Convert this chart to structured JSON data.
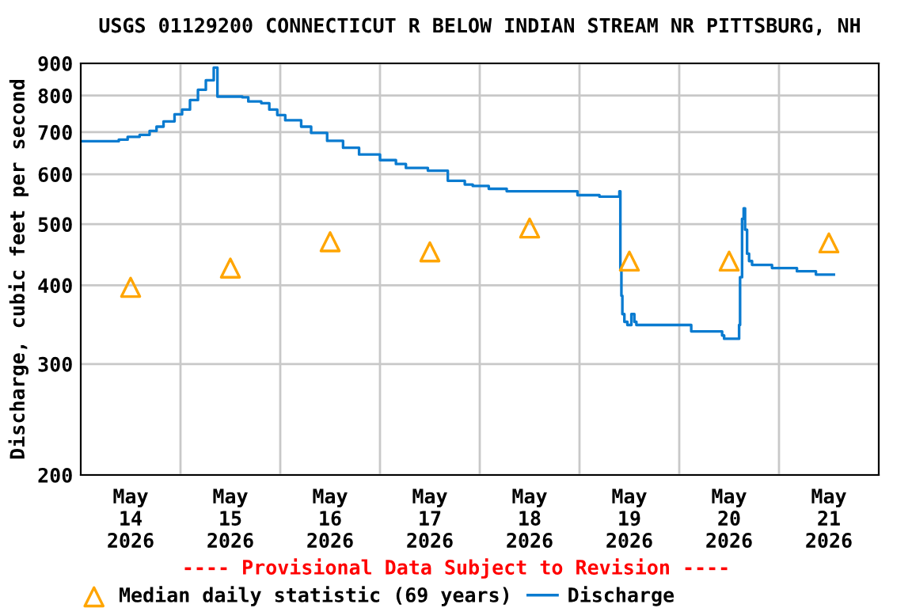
{
  "chart_data": {
    "type": "step",
    "title": "USGS 01129200 CONNECTICUT R BELOW INDIAN STREAM NR PITTSBURG, NH",
    "ylabel": "Discharge, cubic feet per second",
    "log": "y",
    "ylim": [
      200,
      900
    ],
    "yticks": [
      200,
      300,
      400,
      500,
      600,
      700,
      800,
      900
    ],
    "xlim": [
      "2026-05-14T00:00",
      "2026-05-22T00:00"
    ],
    "xticks": [
      {
        "value": "2026-05-14T12:00",
        "label": "May\n14\n2026"
      },
      {
        "value": "2026-05-15T00:00",
        "label": null
      },
      {
        "value": "2026-05-15T12:00",
        "label": "May\n15\n2026"
      },
      {
        "value": "2026-05-16T00:00",
        "label": null
      },
      {
        "value": "2026-05-16T12:00",
        "label": "May\n16\n2026"
      },
      {
        "value": "2026-05-17T00:00",
        "label": null
      },
      {
        "value": "2026-05-17T12:00",
        "label": "May\n17\n2026"
      },
      {
        "value": "2026-05-18T00:00",
        "label": null
      },
      {
        "value": "2026-05-18T12:00",
        "label": "May\n18\n2026"
      },
      {
        "value": "2026-05-19T00:00",
        "label": null
      },
      {
        "value": "2026-05-19T12:00",
        "label": "May\n19\n2026"
      },
      {
        "value": "2026-05-20T00:00",
        "label": null
      },
      {
        "value": "2026-05-20T12:00",
        "label": "May\n20\n2026"
      },
      {
        "value": "2026-05-21T00:00",
        "label": null
      },
      {
        "value": "2026-05-21T12:00",
        "label": "May\n21\n2026"
      }
    ],
    "grid": true,
    "legend": "bottom",
    "annotations": [
      "---- Provisional Data Subject to Revision ----"
    ],
    "series": [
      {
        "name": "Median daily statistic (69 years)",
        "type": "scatter",
        "marker": "triangle",
        "color": "#ffa500",
        "x": [
          "2026-05-14T12:00",
          "2026-05-15T12:00",
          "2026-05-16T12:00",
          "2026-05-17T12:00",
          "2026-05-18T12:00",
          "2026-05-19T12:00",
          "2026-05-20T12:00",
          "2026-05-21T12:00"
        ],
        "values": [
          397,
          426,
          469,
          452,
          493,
          437,
          437,
          467
        ]
      },
      {
        "name": "Discharge",
        "marker": "none",
        "color": "#0a7bd0",
        "x": [
          "2026-05-14T00:00",
          "2026-05-14T09:09",
          "2026-05-14T11:17",
          "2026-05-14T14:10",
          "2026-05-14T16:34",
          "2026-05-14T18:14",
          "2026-05-14T19:55",
          "2026-05-14T22:34",
          "2026-05-15T00:23",
          "2026-05-15T02:17",
          "2026-05-15T04:12",
          "2026-05-15T06:06",
          "2026-05-15T08:00",
          "2026-05-15T08:53",
          "2026-05-15T14:53",
          "2026-05-15T16:19",
          "2026-05-15T19:26",
          "2026-05-15T21:22",
          "2026-05-15T23:17",
          "2026-05-16T01:12",
          "2026-05-16T05:02",
          "2026-05-16T07:26",
          "2026-05-16T11:17",
          "2026-05-16T15:07",
          "2026-05-16T18:58",
          "2026-05-17T00:00",
          "2026-05-17T03:50",
          "2026-05-17T06:14",
          "2026-05-17T11:31",
          "2026-05-17T16:19",
          "2026-05-17T20:24",
          "2026-05-17T22:19",
          "2026-05-18T02:10",
          "2026-05-18T06:29",
          "2026-05-18T23:31",
          "2026-05-19T04:48",
          "2026-05-19T09:36",
          "2026-05-19T09:50",
          "2026-05-19T10:05",
          "2026-05-19T10:19",
          "2026-05-19T10:48",
          "2026-05-19T11:31",
          "2026-05-19T12:29",
          "2026-05-19T13:12",
          "2026-05-19T13:41",
          "2026-05-20T02:53",
          "2026-05-20T10:19",
          "2026-05-20T10:48",
          "2026-05-20T14:10",
          "2026-05-20T14:24",
          "2026-05-20T14:38",
          "2026-05-20T15:07",
          "2026-05-20T15:30",
          "2026-05-20T15:50",
          "2026-05-20T16:19",
          "2026-05-20T16:48",
          "2026-05-20T17:31",
          "2026-05-20T22:19",
          "2026-05-21T04:19",
          "2026-05-21T08:53",
          "2026-05-21T13:12"
        ],
        "values": [
          677,
          681,
          688,
          693,
          703,
          714,
          728,
          747,
          760,
          787,
          817,
          846,
          886,
          797,
          795,
          783,
          778,
          760,
          745,
          731,
          714,
          698,
          678,
          661,
          645,
          632,
          623,
          614,
          608,
          586,
          578,
          575,
          569,
          564,
          556,
          553,
          564,
          424,
          385,
          360,
          350,
          346,
          360,
          350,
          346,
          338,
          333,
          329,
          329,
          346,
          412,
          510,
          530,
          490,
          449,
          437,
          431,
          426,
          421,
          416,
          416
        ]
      }
    ]
  }
}
